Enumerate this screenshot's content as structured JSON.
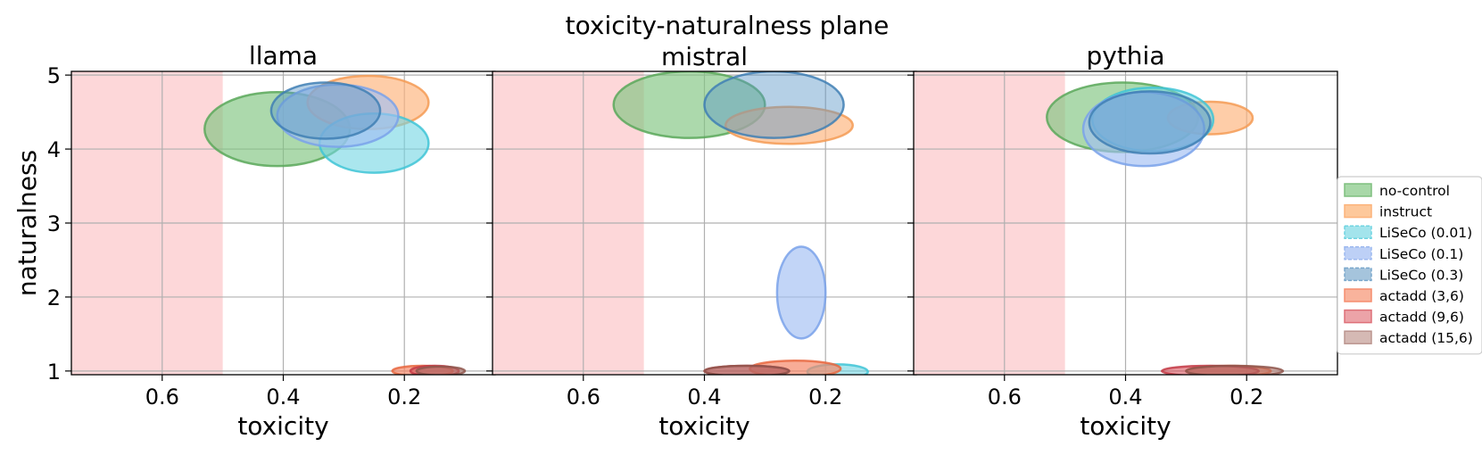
{
  "figure": {
    "suptitle": "toxicity-naturalness plane",
    "ylabel": "naturalness"
  },
  "chart_data": [
    {
      "type": "scatter",
      "title": "llama",
      "xlabel": "toxicity",
      "ylabel": "naturalness",
      "xlim": [
        0.75,
        0.05
      ],
      "ylim": [
        0.95,
        5.05
      ],
      "xticks": [
        "0.6",
        "0.4",
        "0.2"
      ],
      "xtick_values": [
        0.6,
        0.4,
        0.2
      ],
      "yticks": [
        "1",
        "2",
        "3",
        "4",
        "5"
      ],
      "grid": true,
      "shaded_region": {
        "x": [
          0.75,
          0.5
        ],
        "color": "#fdd7d9"
      },
      "series": [
        {
          "name": "no-control",
          "x": 0.41,
          "y": 4.27,
          "rx": 0.12,
          "ry": 0.5
        },
        {
          "name": "instruct",
          "x": 0.26,
          "y": 4.63,
          "rx": 0.1,
          "ry": 0.36
        },
        {
          "name": "LiSeCo (0.01)",
          "x": 0.25,
          "y": 4.08,
          "rx": 0.09,
          "ry": 0.4
        },
        {
          "name": "LiSeCo (0.1)",
          "x": 0.31,
          "y": 4.45,
          "rx": 0.1,
          "ry": 0.42
        },
        {
          "name": "LiSeCo (0.3)",
          "x": 0.33,
          "y": 4.52,
          "rx": 0.09,
          "ry": 0.38
        },
        {
          "name": "actadd (3,6)",
          "x": 0.17,
          "y": 1.0,
          "rx": 0.05,
          "ry": 0.07
        },
        {
          "name": "actadd (9,6)",
          "x": 0.15,
          "y": 1.0,
          "rx": 0.04,
          "ry": 0.07
        },
        {
          "name": "actadd (15,6)",
          "x": 0.14,
          "y": 1.0,
          "rx": 0.04,
          "ry": 0.06
        }
      ]
    },
    {
      "type": "scatter",
      "title": "mistral",
      "xlabel": "toxicity",
      "ylabel": "",
      "xlim": [
        0.75,
        0.05
      ],
      "ylim": [
        0.95,
        5.05
      ],
      "xticks": [
        "0.6",
        "0.4",
        "0.2"
      ],
      "xtick_values": [
        0.6,
        0.4,
        0.2
      ],
      "yticks": [
        "1",
        "2",
        "3",
        "4",
        "5"
      ],
      "grid": true,
      "shaded_region": {
        "x": [
          0.75,
          0.5
        ],
        "color": "#fdd7d9"
      },
      "series": [
        {
          "name": "no-control",
          "x": 0.425,
          "y": 4.6,
          "rx": 0.125,
          "ry": 0.45
        },
        {
          "name": "instruct",
          "x": 0.26,
          "y": 4.32,
          "rx": 0.105,
          "ry": 0.25
        },
        {
          "name": "LiSeCo (0.01)",
          "x": 0.18,
          "y": 0.99,
          "rx": 0.05,
          "ry": 0.1
        },
        {
          "name": "LiSeCo (0.1)",
          "x": 0.24,
          "y": 2.06,
          "rx": 0.04,
          "ry": 0.62
        },
        {
          "name": "LiSeCo (0.3)",
          "x": 0.285,
          "y": 4.6,
          "rx": 0.115,
          "ry": 0.45
        },
        {
          "name": "actadd (3,6)",
          "x": 0.25,
          "y": 1.03,
          "rx": 0.075,
          "ry": 0.11
        },
        {
          "name": "actadd (9,6)",
          "x": 0.33,
          "y": 1.0,
          "rx": 0.07,
          "ry": 0.07
        },
        {
          "name": "actadd (15,6)",
          "x": 0.33,
          "y": 1.0,
          "rx": 0.07,
          "ry": 0.07
        }
      ]
    },
    {
      "type": "scatter",
      "title": "pythia",
      "xlabel": "toxicity",
      "ylabel": "",
      "xlim": [
        0.75,
        0.05
      ],
      "ylim": [
        0.95,
        5.05
      ],
      "xticks": [
        "0.6",
        "0.4",
        "0.2"
      ],
      "xtick_values": [
        0.6,
        0.4,
        0.2
      ],
      "yticks": [
        "1",
        "2",
        "3",
        "4",
        "5"
      ],
      "grid": true,
      "shaded_region": {
        "x": [
          0.75,
          0.5
        ],
        "color": "#fdd7d9"
      },
      "series": [
        {
          "name": "no-control",
          "x": 0.405,
          "y": 4.43,
          "rx": 0.125,
          "ry": 0.47
        },
        {
          "name": "instruct",
          "x": 0.26,
          "y": 4.42,
          "rx": 0.07,
          "ry": 0.22
        },
        {
          "name": "LiSeCo (0.01)",
          "x": 0.355,
          "y": 4.4,
          "rx": 0.1,
          "ry": 0.43
        },
        {
          "name": "LiSeCo (0.1)",
          "x": 0.37,
          "y": 4.27,
          "rx": 0.1,
          "ry": 0.5
        },
        {
          "name": "LiSeCo (0.3)",
          "x": 0.36,
          "y": 4.36,
          "rx": 0.1,
          "ry": 0.42
        },
        {
          "name": "actadd (3,6)",
          "x": 0.23,
          "y": 1.0,
          "rx": 0.07,
          "ry": 0.07
        },
        {
          "name": "actadd (9,6)",
          "x": 0.26,
          "y": 1.0,
          "rx": 0.08,
          "ry": 0.07
        },
        {
          "name": "actadd (15,6)",
          "x": 0.22,
          "y": 1.0,
          "rx": 0.08,
          "ry": 0.07
        }
      ]
    }
  ],
  "legend": {
    "placement": "right",
    "items": [
      {
        "label": "no-control",
        "fill": "#a8d8a8",
        "stroke": "#7fbf7f",
        "dashed": false
      },
      {
        "label": "instruct",
        "fill": "#fdc89b",
        "stroke": "#fcb27a",
        "dashed": false
      },
      {
        "label": "LiSeCo (0.01)",
        "fill": "#a3e4ec",
        "stroke": "#6fd4e1",
        "dashed": true
      },
      {
        "label": "LiSeCo (0.1)",
        "fill": "#bdd0f6",
        "stroke": "#9cb8ef",
        "dashed": true
      },
      {
        "label": "LiSeCo (0.3)",
        "fill": "#a5c4dc",
        "stroke": "#7aa7cb",
        "dashed": true
      },
      {
        "label": "actadd (3,6)",
        "fill": "#f9b39c",
        "stroke": "#f58d6f",
        "dashed": false
      },
      {
        "label": "actadd (9,6)",
        "fill": "#eca3a8",
        "stroke": "#de7078",
        "dashed": false
      },
      {
        "label": "actadd (15,6)",
        "fill": "#d5b9b4",
        "stroke": "#bb958f",
        "dashed": false
      }
    ]
  },
  "series_styles": {
    "no-control": {
      "fill": "#7fc47f",
      "stroke": "#5aa85a",
      "opacity": 0.65
    },
    "instruct": {
      "fill": "#fdb27a",
      "stroke": "#f59b55",
      "opacity": 0.65
    },
    "LiSeCo (0.01)": {
      "fill": "#72d6e3",
      "stroke": "#3fc4d6",
      "opacity": 0.6
    },
    "LiSeCo (0.1)": {
      "fill": "#a2bff2",
      "stroke": "#7aa2ea",
      "opacity": 0.65
    },
    "LiSeCo (0.3)": {
      "fill": "#5a97c8",
      "stroke": "#3f7fb4",
      "opacity": 0.45
    },
    "actadd (3,6)": {
      "fill": "#f5896a",
      "stroke": "#e8673f",
      "opacity": 0.7
    },
    "actadd (9,6)": {
      "fill": "#d9535d",
      "stroke": "#c33a45",
      "opacity": 0.6
    },
    "actadd (15,6)": {
      "fill": "#a97066",
      "stroke": "#8e564c",
      "opacity": 0.55
    }
  }
}
